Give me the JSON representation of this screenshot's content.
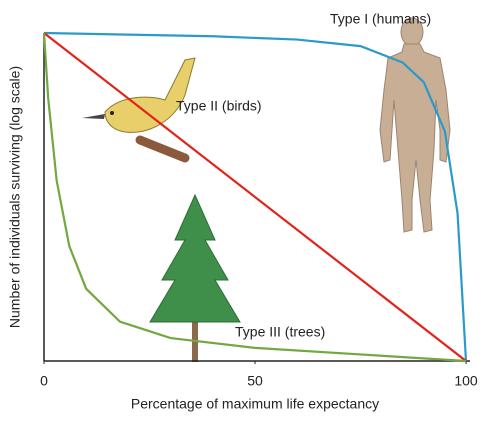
{
  "chart_data": {
    "type": "line",
    "x_label": "Percentage of maximum life expectancy",
    "y_label": "Number of individuals surviving (log scale)",
    "xlim": [
      0,
      100
    ],
    "xticks": [
      0,
      50,
      100
    ],
    "ylim": [
      0,
      100
    ],
    "series": [
      {
        "name": "Type I (humans)",
        "color": "#2a9bc9",
        "x": [
          0,
          20,
          40,
          60,
          75,
          85,
          90,
          95,
          98,
          100
        ],
        "values": [
          100,
          99.5,
          99,
          98,
          96,
          91,
          85,
          70,
          45,
          0
        ]
      },
      {
        "name": "Type II (birds)",
        "color": "#e2231a",
        "x": [
          0,
          100
        ],
        "values": [
          100,
          0
        ]
      },
      {
        "name": "Type III (trees)",
        "color": "#72a840",
        "x": [
          0,
          1,
          3,
          6,
          10,
          18,
          30,
          50,
          75,
          100
        ],
        "values": [
          100,
          80,
          55,
          35,
          22,
          12,
          7,
          4,
          2,
          0
        ]
      }
    ]
  }
}
